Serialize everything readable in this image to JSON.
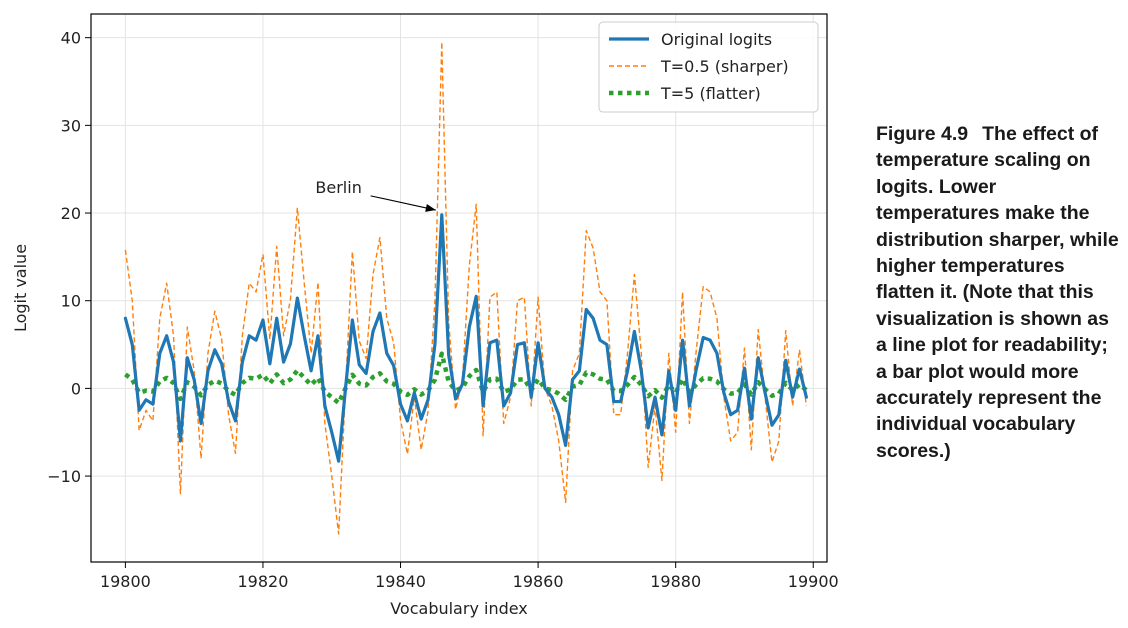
{
  "caption": {
    "label": "Figure 4.9",
    "text": "The effect of temperature scaling on logits. Lower temperatures make the distribution sharper, while higher temperatures flatten it. (Note that this visualization is shown as a line plot for readability; a bar plot would more accurately represent the individual vocabulary scores.)"
  },
  "chart_data": {
    "type": "line",
    "title": "",
    "xlabel": "Vocabulary index",
    "ylabel": "Logit value",
    "xlim": [
      19795,
      19902
    ],
    "ylim": [
      -19.8,
      42.7
    ],
    "xticks": [
      19800,
      19820,
      19840,
      19860,
      19880,
      19900
    ],
    "yticks": [
      -10,
      0,
      10,
      20,
      30,
      40
    ],
    "xtick_labels": [
      "19800",
      "19820",
      "19840",
      "19860",
      "19880",
      "19900"
    ],
    "ytick_labels": [
      "−10",
      "0",
      "10",
      "20",
      "30",
      "40"
    ],
    "grid": true,
    "legend_position": "top-right",
    "x_start": 19800,
    "series": [
      {
        "name": "Original logits",
        "style": "solid",
        "color": "#1f77b4",
        "values": [
          8.0,
          5.0,
          -2.5,
          -1.3,
          -1.8,
          4.0,
          6.0,
          3.0,
          -6.0,
          3.5,
          1.0,
          -4.0,
          2.0,
          4.4,
          2.8,
          -1.5,
          -3.7,
          3.0,
          6.0,
          5.5,
          7.8,
          2.8,
          8.0,
          3.0,
          5.1,
          10.3,
          6.0,
          2.0,
          6.0,
          -2.0,
          -5.0,
          -8.3,
          0.0,
          7.8,
          2.7,
          1.7,
          6.5,
          8.6,
          4.0,
          2.6,
          -1.8,
          -3.7,
          -0.5,
          -3.5,
          -1.3,
          5.0,
          19.8,
          3.8,
          -1.2,
          0.5,
          7.0,
          10.5,
          -2.0,
          5.2,
          5.5,
          -2.0,
          -0.5,
          5.0,
          5.2,
          -1.0,
          5.2,
          0.0,
          -1.0,
          -3.0,
          -6.5,
          1.0,
          2.0,
          9.0,
          8.0,
          5.5,
          5.0,
          -1.5,
          -1.5,
          2.0,
          6.5,
          2.0,
          -4.5,
          -1.0,
          -5.3,
          2.0,
          -2.5,
          5.5,
          -2.0,
          2.2,
          5.8,
          5.5,
          4.0,
          -0.5,
          -3.0,
          -2.5,
          2.3,
          -3.5,
          3.5,
          -0.5,
          -4.2,
          -3.0,
          3.2,
          -1.0,
          2.2,
          -1.0
        ]
      },
      {
        "name": "T=0.5 (sharper)",
        "style": "dashed",
        "color": "#ff7f0e",
        "values": [
          15.8,
          10.0,
          -4.8,
          -2.5,
          -3.7,
          8.0,
          12.0,
          6.0,
          -12.0,
          7.0,
          2.0,
          -8.0,
          4.0,
          8.8,
          5.6,
          -3.0,
          -7.4,
          6.0,
          12.0,
          11.0,
          15.3,
          5.6,
          16.2,
          6.0,
          10.2,
          20.6,
          12.0,
          4.0,
          12.1,
          -4.0,
          -10.0,
          -16.6,
          0.0,
          15.6,
          5.4,
          3.4,
          13.0,
          17.2,
          8.0,
          5.2,
          -3.6,
          -7.5,
          -1.0,
          -7.0,
          -2.6,
          10.0,
          39.5,
          7.6,
          -2.4,
          1.0,
          14.0,
          21.0,
          -5.4,
          10.4,
          11.0,
          -4.0,
          -1.0,
          10.0,
          10.4,
          -2.0,
          10.4,
          0.0,
          -2.0,
          -6.0,
          -13.0,
          2.0,
          4.0,
          18.0,
          16.0,
          11.0,
          10.0,
          -3.0,
          -3.0,
          4.0,
          13.0,
          4.0,
          -9.0,
          -2.0,
          -10.5,
          4.0,
          -5.0,
          11.0,
          -4.0,
          4.4,
          11.6,
          11.0,
          8.0,
          -1.0,
          -6.0,
          -5.0,
          4.6,
          -7.0,
          6.7,
          -1.0,
          -8.4,
          -6.0,
          6.6,
          -2.0,
          4.4,
          -2.0
        ]
      },
      {
        "name": "T=5 (flatter)",
        "style": "dotted",
        "color": "#2ca02c",
        "values": [
          1.6,
          1.0,
          -0.5,
          -0.26,
          -0.36,
          0.8,
          1.2,
          0.6,
          -1.2,
          0.7,
          0.2,
          -0.8,
          0.4,
          0.88,
          0.56,
          -0.3,
          -0.74,
          0.6,
          1.2,
          1.1,
          1.56,
          0.56,
          1.6,
          0.6,
          1.02,
          2.06,
          1.2,
          0.4,
          1.2,
          -0.4,
          -1.0,
          -1.66,
          0.0,
          1.56,
          0.54,
          0.34,
          1.3,
          1.72,
          0.8,
          0.52,
          -0.36,
          -0.74,
          -0.1,
          -0.7,
          -0.26,
          1.0,
          3.96,
          0.76,
          -0.24,
          0.1,
          1.4,
          2.1,
          -0.4,
          1.04,
          1.1,
          -0.4,
          -0.1,
          1.0,
          1.04,
          -0.2,
          1.04,
          0.0,
          -0.2,
          -0.6,
          -1.3,
          0.2,
          0.4,
          1.8,
          1.6,
          1.1,
          1.0,
          -0.3,
          -0.3,
          0.4,
          1.3,
          0.4,
          -0.9,
          -0.2,
          -1.06,
          0.4,
          -0.5,
          1.1,
          -0.4,
          0.44,
          1.16,
          1.1,
          0.8,
          -0.1,
          -0.6,
          -0.5,
          0.46,
          -0.7,
          0.7,
          -0.1,
          -0.84,
          -0.6,
          0.64,
          -0.2,
          0.44,
          -0.2
        ]
      }
    ],
    "annotations": [
      {
        "text": "Berlin",
        "x": 19846,
        "y": 20,
        "text_x": 19831,
        "text_y": 22.3
      }
    ]
  }
}
